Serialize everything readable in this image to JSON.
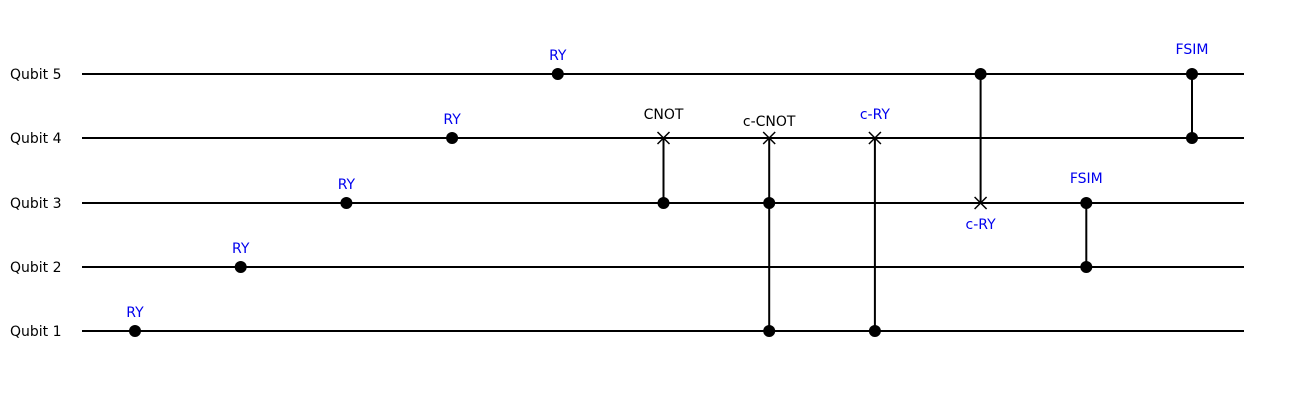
{
  "colors": {
    "wire": "#000000",
    "black_label": "#000000",
    "blue_label": "#0000ee"
  },
  "qubits": [
    {
      "id": 5,
      "label": "Qubit 5"
    },
    {
      "id": 4,
      "label": "Qubit 4"
    },
    {
      "id": 3,
      "label": "Qubit 3"
    },
    {
      "id": 2,
      "label": "Qubit 2"
    },
    {
      "id": 1,
      "label": "Qubit 1"
    }
  ],
  "gates": [
    {
      "step": 1,
      "type": "single",
      "qubit": 1,
      "label": "RY",
      "label_color": "blue"
    },
    {
      "step": 2,
      "type": "single",
      "qubit": 2,
      "label": "RY",
      "label_color": "blue"
    },
    {
      "step": 3,
      "type": "single",
      "qubit": 3,
      "label": "RY",
      "label_color": "blue"
    },
    {
      "step": 4,
      "type": "single",
      "qubit": 4,
      "label": "RY",
      "label_color": "blue"
    },
    {
      "step": 5,
      "type": "single",
      "qubit": 5,
      "label": "RY",
      "label_color": "blue"
    },
    {
      "step": 6,
      "type": "controlled",
      "controls": [
        3
      ],
      "target": 4,
      "label": "CNOT",
      "label_color": "black",
      "label_pos": "above"
    },
    {
      "step": 7,
      "type": "controlled",
      "controls": [
        3,
        1
      ],
      "target": 4,
      "label": "c-CNOT",
      "label_color": "black",
      "label_pos": "above"
    },
    {
      "step": 8,
      "type": "controlled",
      "controls": [
        1
      ],
      "target": 4,
      "label": "c-RY",
      "label_color": "blue",
      "label_pos": "above"
    },
    {
      "step": 9,
      "type": "controlled",
      "controls": [
        5
      ],
      "target": 3,
      "label": "c-RY",
      "label_color": "blue",
      "label_pos": "below"
    },
    {
      "step": 10,
      "type": "two_qubit",
      "qubits": [
        3,
        2
      ],
      "label": "FSIM",
      "label_color": "blue",
      "label_pos": "above"
    },
    {
      "step": 11,
      "type": "two_qubit",
      "qubits": [
        5,
        4
      ],
      "label": "FSIM",
      "label_color": "blue",
      "label_pos": "above"
    }
  ]
}
